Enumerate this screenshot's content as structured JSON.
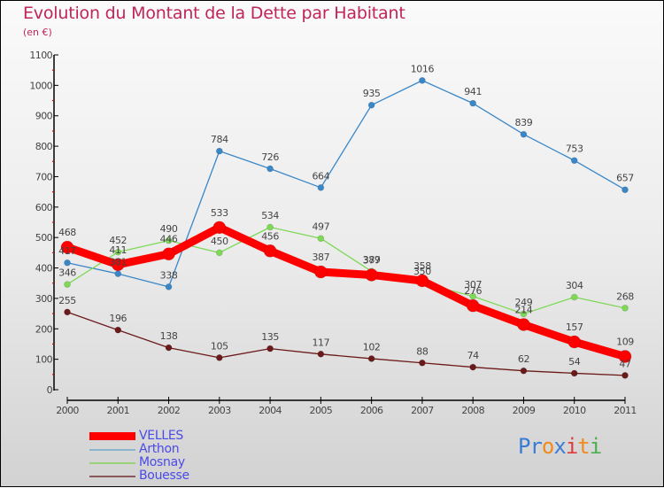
{
  "chart_data": {
    "type": "line",
    "title": "Evolution du Montant de la Dette par Habitant",
    "subtitle": "(en €)",
    "xlabel": "",
    "ylabel": "",
    "x": [
      "2000",
      "2001",
      "2002",
      "2003",
      "2004",
      "2005",
      "2006",
      "2007",
      "2008",
      "2009",
      "2010",
      "2011"
    ],
    "ylim": [
      0,
      1100
    ],
    "yticks": [
      0,
      100,
      200,
      300,
      400,
      500,
      600,
      700,
      800,
      900,
      1000,
      1100
    ],
    "grid": false,
    "legend_position": "bottom-left",
    "series": [
      {
        "name": "VELLES",
        "color": "#ff0000",
        "values": [
          468,
          411,
          446,
          533,
          456,
          387,
          377,
          358,
          276,
          214,
          157,
          109
        ]
      },
      {
        "name": "Arthon",
        "color": "#3a87c8",
        "values": [
          417,
          381,
          338,
          784,
          726,
          664,
          935,
          1016,
          941,
          839,
          753,
          657
        ]
      },
      {
        "name": "Mosnay",
        "color": "#7ed957",
        "values": [
          346,
          452,
          490,
          450,
          534,
          497,
          389,
          350,
          307,
          249,
          304,
          268
        ]
      },
      {
        "name": "Bouesse",
        "color": "#6b1a1a",
        "values": [
          255,
          196,
          138,
          105,
          135,
          117,
          102,
          88,
          74,
          62,
          54,
          47
        ]
      }
    ]
  },
  "legend": {
    "items": [
      {
        "label": "VELLES",
        "color": "#ff0000"
      },
      {
        "label": "Arthon",
        "color": "#8ab4cc"
      },
      {
        "label": "Mosnay",
        "color": "#9ad27a"
      },
      {
        "label": "Bouesse",
        "color": "#8a5a5a"
      }
    ]
  },
  "brand": {
    "letters": [
      {
        "ch": "P",
        "color": "#3a7bd5"
      },
      {
        "ch": "r",
        "color": "#3a7bd5"
      },
      {
        "ch": "o",
        "color": "#f08a1c"
      },
      {
        "ch": "x",
        "color": "#3a7bd5"
      },
      {
        "ch": "i",
        "color": "#e03a3a"
      },
      {
        "ch": "t",
        "color": "#f08a1c"
      },
      {
        "ch": "i",
        "color": "#4caf50"
      }
    ]
  }
}
